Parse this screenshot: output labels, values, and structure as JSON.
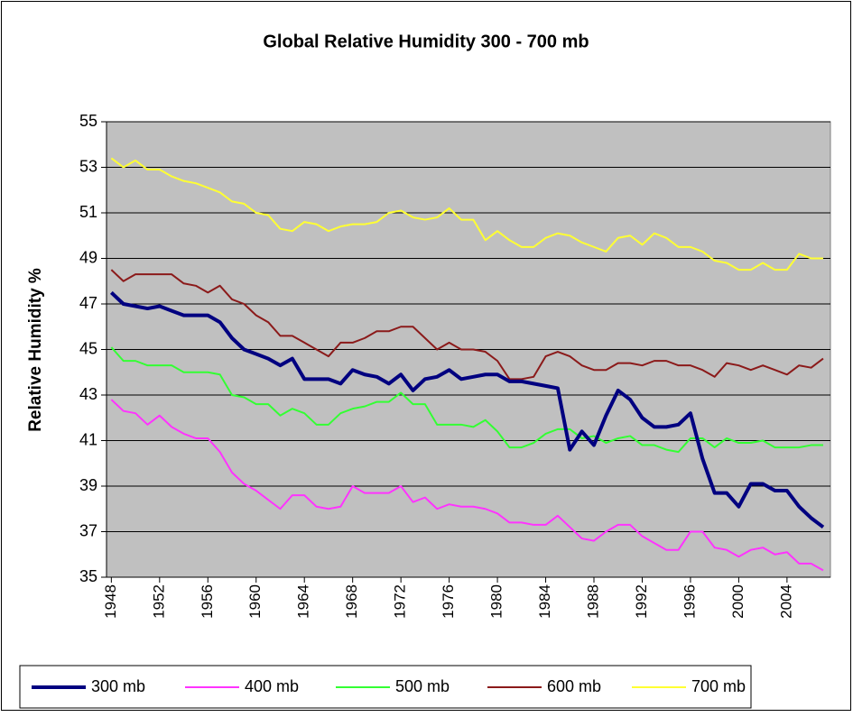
{
  "chart_data": {
    "type": "line",
    "title": "Global Relative Humidity 300 - 700 mb",
    "y_label": "Relative Humidity %",
    "x": [
      1948,
      1949,
      1950,
      1951,
      1952,
      1953,
      1954,
      1955,
      1956,
      1957,
      1958,
      1959,
      1960,
      1961,
      1962,
      1963,
      1964,
      1965,
      1966,
      1967,
      1968,
      1969,
      1970,
      1971,
      1972,
      1973,
      1974,
      1975,
      1976,
      1977,
      1978,
      1979,
      1980,
      1981,
      1982,
      1983,
      1984,
      1985,
      1986,
      1987,
      1988,
      1989,
      1990,
      1991,
      1992,
      1993,
      1994,
      1995,
      1996,
      1997,
      1998,
      1999,
      2000,
      2001,
      2002,
      2003,
      2004,
      2005,
      2006,
      2007
    ],
    "xlim": [
      1947.6,
      2007.6
    ],
    "xticks": [
      1948,
      1952,
      1956,
      1960,
      1964,
      1968,
      1972,
      1976,
      1980,
      1984,
      1988,
      1992,
      1996,
      2000,
      2004
    ],
    "ylim": [
      35,
      55
    ],
    "yticks": [
      35,
      37,
      39,
      41,
      43,
      45,
      47,
      49,
      51,
      53,
      55
    ],
    "grid": true,
    "series": [
      {
        "name": "300 mb",
        "color": "#000080",
        "values": [
          47.5,
          47.0,
          46.9,
          46.8,
          46.9,
          46.7,
          46.5,
          46.5,
          46.5,
          46.2,
          45.5,
          45.0,
          44.8,
          44.6,
          44.3,
          44.6,
          43.7,
          43.7,
          43.7,
          43.5,
          44.1,
          43.9,
          43.8,
          43.5,
          43.9,
          43.2,
          43.7,
          43.8,
          44.1,
          43.7,
          43.8,
          43.9,
          43.9,
          43.6,
          43.6,
          43.5,
          43.4,
          43.3,
          40.6,
          41.4,
          40.8,
          42.1,
          43.2,
          42.8,
          42.0,
          41.6,
          41.6,
          41.7,
          42.2,
          40.2,
          38.7,
          38.7,
          38.1,
          39.1,
          39.1,
          38.8,
          38.8,
          38.1,
          37.6,
          37.2
        ]
      },
      {
        "name": "400 mb",
        "color": "#ff33ff",
        "values": [
          42.8,
          42.3,
          42.2,
          41.7,
          42.1,
          41.6,
          41.3,
          41.1,
          41.1,
          40.5,
          39.6,
          39.1,
          38.8,
          38.4,
          38.0,
          38.6,
          38.6,
          38.1,
          38.0,
          38.1,
          39.0,
          38.7,
          38.7,
          38.7,
          39.0,
          38.3,
          38.5,
          38.0,
          38.2,
          38.1,
          38.1,
          38.0,
          37.8,
          37.4,
          37.4,
          37.3,
          37.3,
          37.7,
          37.2,
          36.7,
          36.6,
          37.0,
          37.3,
          37.3,
          36.8,
          36.5,
          36.2,
          36.2,
          37.0,
          37.0,
          36.3,
          36.2,
          35.9,
          36.2,
          36.3,
          36.0,
          36.1,
          35.6,
          35.6,
          35.3
        ]
      },
      {
        "name": "500 mb",
        "color": "#33ff33",
        "values": [
          45.1,
          44.5,
          44.5,
          44.3,
          44.3,
          44.3,
          44.0,
          44.0,
          44.0,
          43.9,
          43.0,
          42.9,
          42.6,
          42.6,
          42.1,
          42.4,
          42.2,
          41.7,
          41.7,
          42.2,
          42.4,
          42.5,
          42.7,
          42.7,
          43.1,
          42.6,
          42.6,
          41.7,
          41.7,
          41.7,
          41.6,
          41.9,
          41.4,
          40.7,
          40.7,
          40.9,
          41.3,
          41.5,
          41.5,
          41.1,
          41.2,
          40.9,
          41.1,
          41.2,
          40.8,
          40.8,
          40.6,
          40.5,
          41.1,
          41.1,
          40.7,
          41.1,
          40.9,
          40.9,
          41.0,
          40.7,
          40.7,
          40.7,
          40.8,
          40.8
        ]
      },
      {
        "name": "600 mb",
        "color": "#8b1a1a",
        "values": [
          48.5,
          48.0,
          48.3,
          48.3,
          48.3,
          48.3,
          47.9,
          47.8,
          47.5,
          47.8,
          47.2,
          47.0,
          46.5,
          46.2,
          45.6,
          45.6,
          45.3,
          45.0,
          44.7,
          45.3,
          45.3,
          45.5,
          45.8,
          45.8,
          46.0,
          46.0,
          45.5,
          45.0,
          45.3,
          45.0,
          45.0,
          44.9,
          44.5,
          43.7,
          43.7,
          43.8,
          44.7,
          44.9,
          44.7,
          44.3,
          44.1,
          44.1,
          44.4,
          44.4,
          44.3,
          44.5,
          44.5,
          44.3,
          44.3,
          44.1,
          43.8,
          44.4,
          44.3,
          44.1,
          44.3,
          44.1,
          43.9,
          44.3,
          44.2,
          44.6
        ]
      },
      {
        "name": "700 mb",
        "color": "#ffff33",
        "values": [
          53.4,
          53.0,
          53.3,
          52.9,
          52.9,
          52.6,
          52.4,
          52.3,
          52.1,
          51.9,
          51.5,
          51.4,
          51.0,
          50.9,
          50.3,
          50.2,
          50.6,
          50.5,
          50.2,
          50.4,
          50.5,
          50.5,
          50.6,
          51.0,
          51.1,
          50.8,
          50.7,
          50.8,
          51.2,
          50.7,
          50.7,
          49.8,
          50.2,
          49.8,
          49.5,
          49.5,
          49.9,
          50.1,
          50.0,
          49.7,
          49.5,
          49.3,
          49.9,
          50.0,
          49.6,
          50.1,
          49.9,
          49.5,
          49.5,
          49.3,
          48.9,
          48.8,
          48.5,
          48.5,
          48.8,
          48.5,
          48.5,
          49.2,
          49.0,
          49.0
        ]
      }
    ]
  }
}
